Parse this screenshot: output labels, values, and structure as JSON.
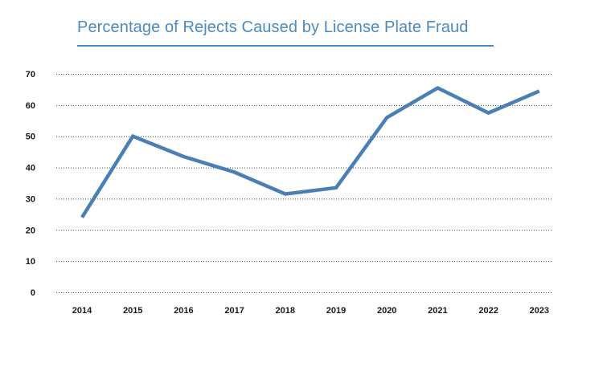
{
  "chart_data": {
    "type": "line",
    "title": "Percentage of Rejects Caused by License Plate Fraud",
    "xlabel": "",
    "ylabel": "",
    "categories": [
      "2014",
      "2015",
      "2016",
      "2017",
      "2018",
      "2019",
      "2020",
      "2021",
      "2022",
      "2023"
    ],
    "series": [
      {
        "name": "Percentage of Rejects",
        "values": [
          24,
          50,
          43.5,
          38.5,
          31.5,
          33.5,
          56,
          65.5,
          57.5,
          64.5
        ]
      }
    ],
    "y_ticks": [
      "0",
      "10",
      "20",
      "30",
      "40",
      "50",
      "60",
      "70"
    ],
    "ylim": [
      0,
      70
    ],
    "grid": "dotted horizontal",
    "legend": "none"
  },
  "colors": {
    "title": "#4a8bc2",
    "line": "#4a7fb5",
    "grid": "#444444",
    "tick_text": "#1a1a1a"
  }
}
